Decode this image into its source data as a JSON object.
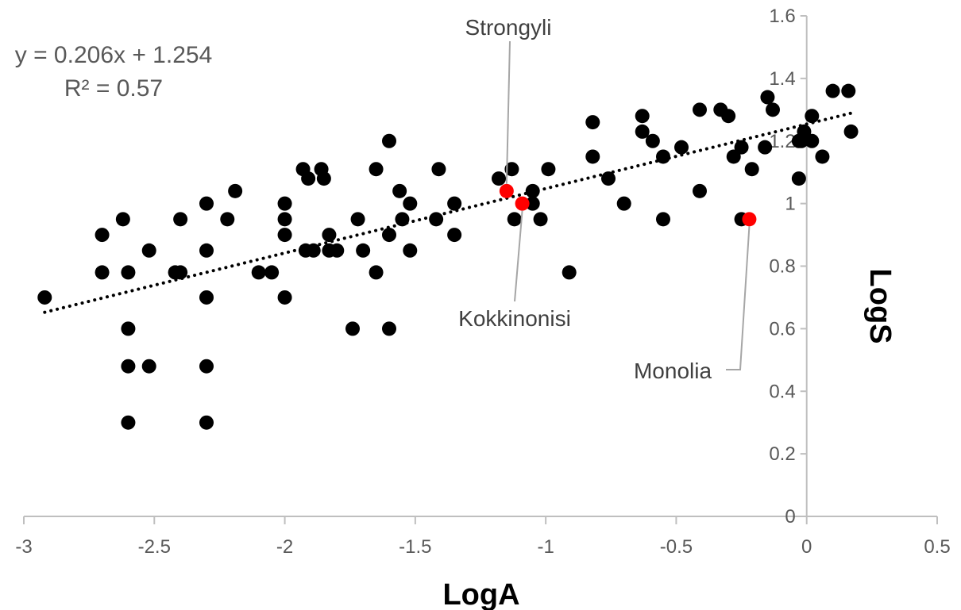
{
  "chart_data": {
    "type": "scatter",
    "xlabel": "LogA",
    "ylabel": "LogS",
    "xlim": [
      -3,
      0.5
    ],
    "ylim": [
      0,
      1.6
    ],
    "xticks": [
      "-3",
      "-2.5",
      "-2",
      "-1.5",
      "-1",
      "-0.5",
      "0",
      "0.5"
    ],
    "yticks": [
      "0",
      "0.2",
      "0.4",
      "0.6",
      "0.8",
      "1",
      "1.2",
      "1.4",
      "1.6"
    ],
    "equation": "y = 0.206x + 1.254",
    "r2": "R² = 0.57",
    "trendline": {
      "slope": 0.206,
      "intercept": 1.254,
      "x_range": [
        -2.92,
        0.18
      ],
      "style": "dotted"
    },
    "colors": {
      "points": "#000000",
      "highlight": "#ff0000",
      "axis": "#bfbfbf",
      "leader": "#a6a6a6"
    },
    "series": [
      {
        "points": [
          [
            -2.92,
            0.7
          ],
          [
            -2.7,
            0.9
          ],
          [
            -2.7,
            0.78
          ],
          [
            -2.62,
            0.95
          ],
          [
            -2.6,
            0.78
          ],
          [
            -2.6,
            0.6
          ],
          [
            -2.6,
            0.48
          ],
          [
            -2.6,
            0.3
          ],
          [
            -2.52,
            0.85
          ],
          [
            -2.52,
            0.48
          ],
          [
            -2.42,
            0.78
          ],
          [
            -2.4,
            0.78
          ],
          [
            -2.4,
            0.95
          ],
          [
            -2.3,
            1.0
          ],
          [
            -2.3,
            0.85
          ],
          [
            -2.3,
            0.7
          ],
          [
            -2.3,
            0.48
          ],
          [
            -2.3,
            0.3
          ],
          [
            -2.22,
            0.95
          ],
          [
            -2.19,
            1.04
          ],
          [
            -2.1,
            0.78
          ],
          [
            -2.05,
            0.78
          ],
          [
            -2.0,
            1.0
          ],
          [
            -2.0,
            0.95
          ],
          [
            -2.0,
            0.9
          ],
          [
            -2.0,
            0.7
          ],
          [
            -1.93,
            1.11
          ],
          [
            -1.92,
            0.85
          ],
          [
            -1.91,
            1.08
          ],
          [
            -1.89,
            0.85
          ],
          [
            -1.86,
            1.11
          ],
          [
            -1.85,
            1.08
          ],
          [
            -1.83,
            0.9
          ],
          [
            -1.83,
            0.85
          ],
          [
            -1.8,
            0.85
          ],
          [
            -1.74,
            0.6
          ],
          [
            -1.72,
            0.95
          ],
          [
            -1.7,
            0.85
          ],
          [
            -1.65,
            1.11
          ],
          [
            -1.65,
            0.78
          ],
          [
            -1.6,
            1.2
          ],
          [
            -1.6,
            0.9
          ],
          [
            -1.6,
            0.6
          ],
          [
            -1.56,
            1.04
          ],
          [
            -1.55,
            0.95
          ],
          [
            -1.52,
            1.0
          ],
          [
            -1.52,
            0.85
          ],
          [
            -1.42,
            0.95
          ],
          [
            -1.41,
            1.11
          ],
          [
            -1.35,
            1.0
          ],
          [
            -1.35,
            0.9
          ],
          [
            -1.18,
            1.08
          ],
          [
            -1.13,
            1.11
          ],
          [
            -1.12,
            0.95
          ],
          [
            -1.05,
            1.04
          ],
          [
            -1.05,
            1.0
          ],
          [
            -1.02,
            0.95
          ],
          [
            -0.99,
            1.11
          ],
          [
            -0.91,
            0.78
          ],
          [
            -0.82,
            1.26
          ],
          [
            -0.82,
            1.15
          ],
          [
            -0.76,
            1.08
          ],
          [
            -0.7,
            1.0
          ],
          [
            -0.63,
            1.28
          ],
          [
            -0.63,
            1.23
          ],
          [
            -0.59,
            1.2
          ],
          [
            -0.55,
            1.15
          ],
          [
            -0.55,
            0.95
          ],
          [
            -0.48,
            1.18
          ],
          [
            -0.41,
            1.3
          ],
          [
            -0.41,
            1.04
          ],
          [
            -0.33,
            1.3
          ],
          [
            -0.3,
            1.28
          ],
          [
            -0.28,
            1.15
          ],
          [
            -0.25,
            1.18
          ],
          [
            -0.25,
            0.95
          ],
          [
            -0.21,
            1.11
          ],
          [
            -0.16,
            1.18
          ],
          [
            -0.15,
            1.34
          ],
          [
            -0.13,
            1.3
          ],
          [
            -0.03,
            1.08
          ],
          [
            -0.03,
            1.2
          ],
          [
            -0.02,
            1.2
          ],
          [
            -0.01,
            1.23
          ],
          [
            0.02,
            1.28
          ],
          [
            0.02,
            1.2
          ],
          [
            0.06,
            1.15
          ],
          [
            0.1,
            1.36
          ],
          [
            0.16,
            1.36
          ],
          [
            0.17,
            1.23
          ]
        ]
      },
      {
        "highlight": true,
        "points": [
          [
            -1.15,
            1.04
          ],
          [
            -1.09,
            1.0
          ],
          [
            -0.22,
            0.95
          ]
        ]
      }
    ],
    "annotations": [
      "Strongyli",
      "Kokkinonisi",
      "Monolia"
    ]
  }
}
